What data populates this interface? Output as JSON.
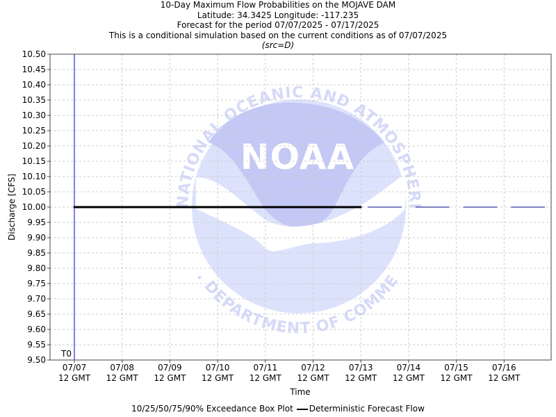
{
  "chart_data": {
    "type": "line",
    "title_lines": [
      "10-Day Maximum Flow Probabilities on the MOJAVE DAM",
      "Latitude: 34.3425 Longitude: -117.235",
      "Forecast for the period 07/07/2025 - 07/17/2025",
      "This is a conditional simulation based on the current conditions as of 07/07/2025"
    ],
    "subtitle": "(src=D)",
    "xlabel": "Time",
    "ylabel": "Discharge [CFS]",
    "ylim": [
      9.5,
      10.5
    ],
    "y_ticks": [
      "9.50",
      "9.55",
      "9.60",
      "9.65",
      "9.70",
      "9.75",
      "9.80",
      "9.85",
      "9.90",
      "9.95",
      "10.00",
      "10.05",
      "10.10",
      "10.15",
      "10.20",
      "10.25",
      "10.30",
      "10.35",
      "10.40",
      "10.45",
      "10.50"
    ],
    "x_ticks": [
      {
        "date": "07/07",
        "time": "12 GMT"
      },
      {
        "date": "07/08",
        "time": "12 GMT"
      },
      {
        "date": "07/09",
        "time": "12 GMT"
      },
      {
        "date": "07/10",
        "time": "12 GMT"
      },
      {
        "date": "07/11",
        "time": "12 GMT"
      },
      {
        "date": "07/12",
        "time": "12 GMT"
      },
      {
        "date": "07/13",
        "time": "12 GMT"
      },
      {
        "date": "07/14",
        "time": "12 GMT"
      },
      {
        "date": "07/15",
        "time": "12 GMT"
      },
      {
        "date": "07/16",
        "time": "12 GMT"
      }
    ],
    "t0_label": "T0",
    "grid": true,
    "deterministic_series": {
      "name": "Deterministic Forecast Flow",
      "points": [
        {
          "x": "07/07 12 GMT",
          "y": 10.0
        },
        {
          "x": "07/13 12 GMT",
          "y": 10.0
        }
      ]
    },
    "box_plot_segments": [
      {
        "x_start": "07/13 12 GMT",
        "x_end": "07/14 12 GMT",
        "y": 10.0
      },
      {
        "x_start": "07/14 12 GMT",
        "x_end": "07/15 12 GMT",
        "y": 10.0
      },
      {
        "x_start": "07/15 12 GMT",
        "x_end": "07/16 12 GMT",
        "y": 10.0
      },
      {
        "x_start": "07/16 12 GMT",
        "x_end": "07/17 12 GMT",
        "y": 10.0
      }
    ],
    "legend": {
      "box_label": "10/25/50/75/90% Exceedance Box Plot",
      "line_label": "Deterministic Forecast Flow",
      "placement": "bottom-center"
    },
    "colors": {
      "deterministic": "#000000",
      "box_plot": "#00008b",
      "t0_line": "#0000cd",
      "grid": "#cccccc",
      "watermark": "#d8dcff"
    },
    "watermark": {
      "logo_text": "NOAA",
      "ring_top": "NATIONAL OCEANIC AND ATMOSPHERIC ADMINISTRATION",
      "ring_bottom": "U.S. DEPARTMENT OF COMMERCE"
    }
  }
}
